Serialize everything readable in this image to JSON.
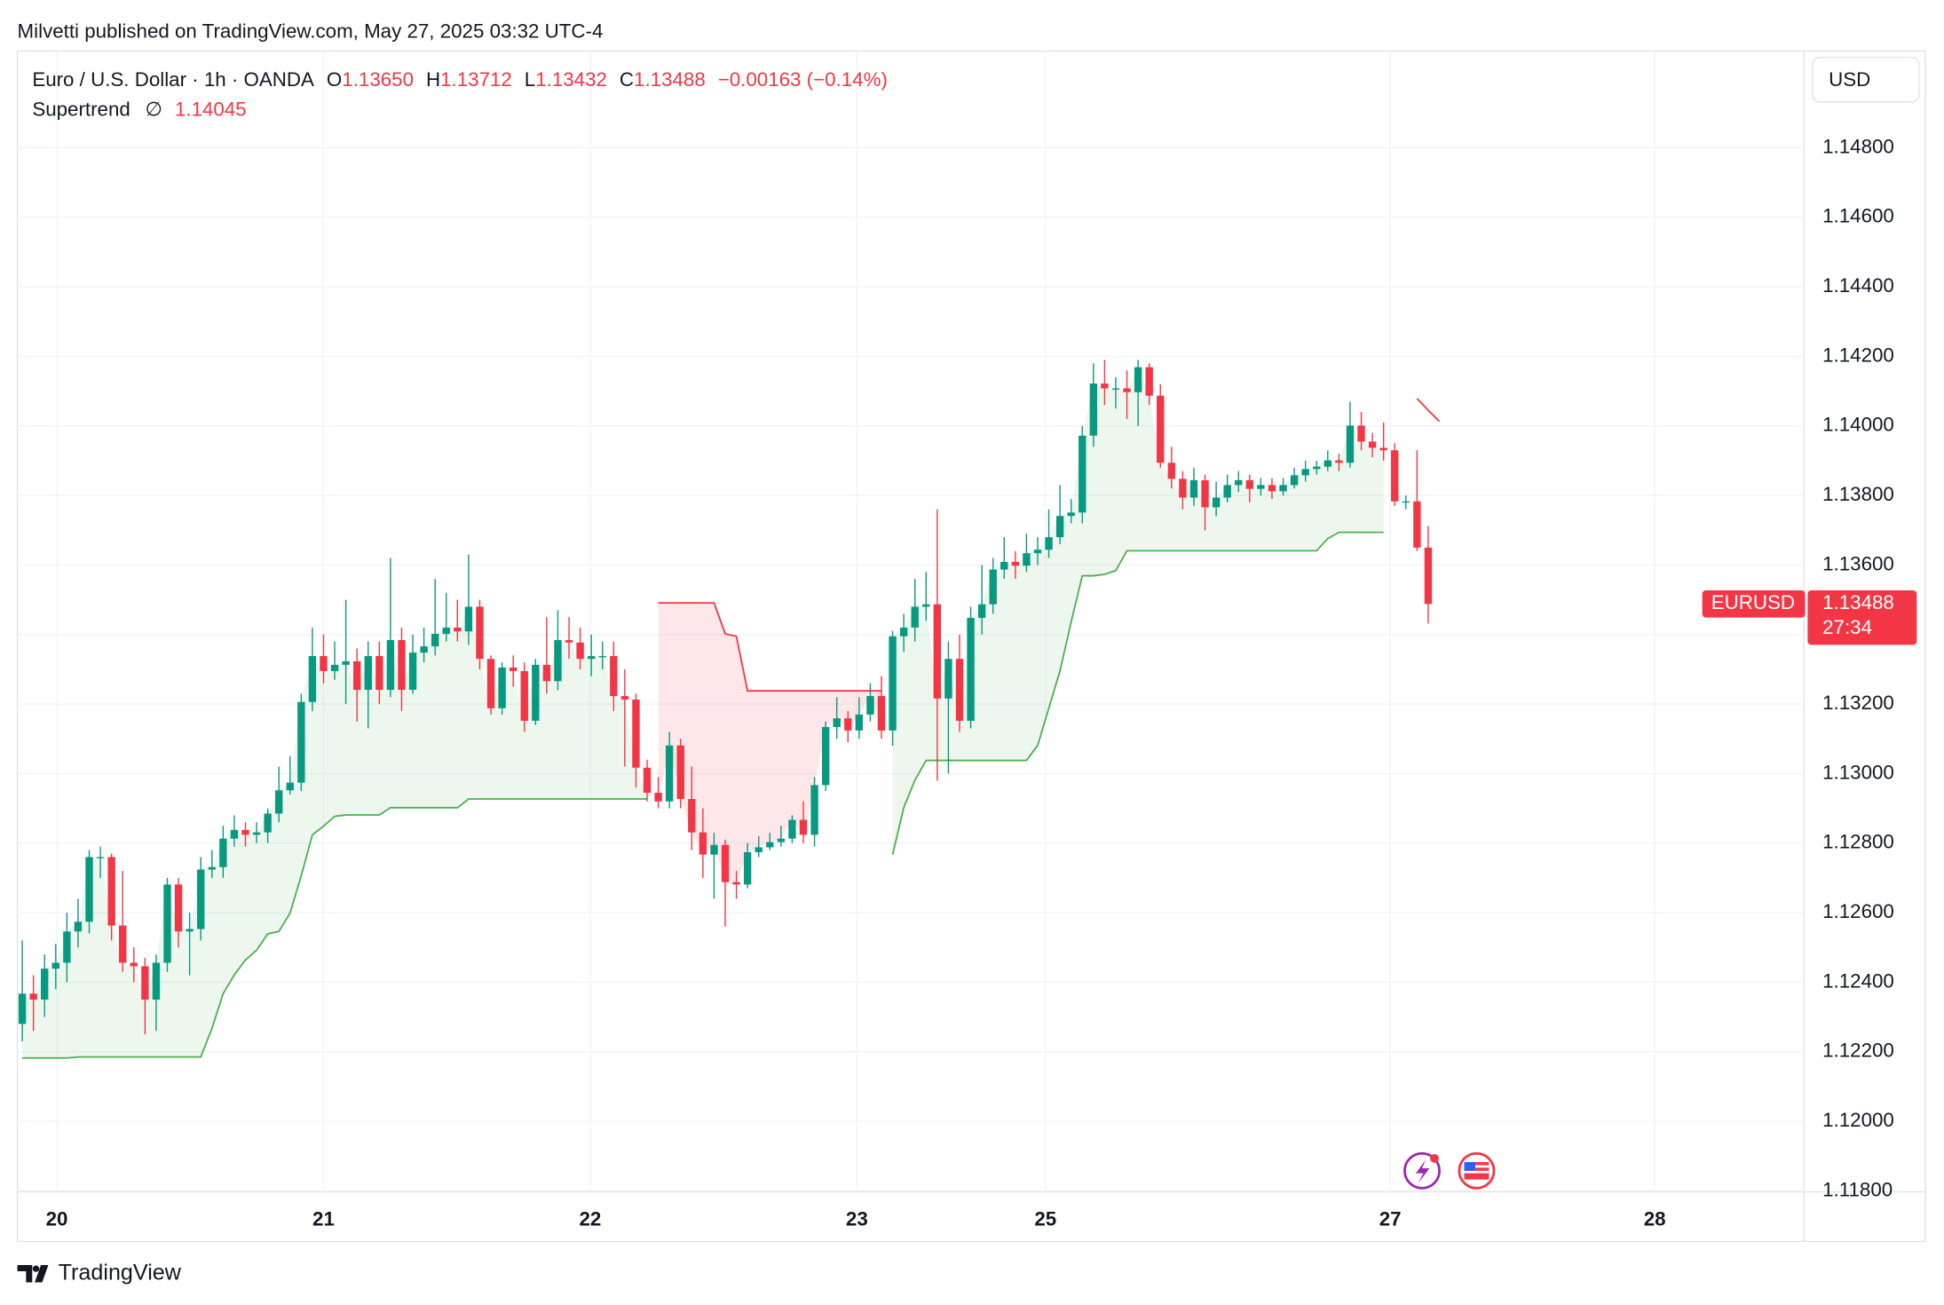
{
  "header": {
    "publisher": "Milvetti published on TradingView.com, May 27, 2025 03:32 UTC-4",
    "symbol": "Euro / U.S. Dollar · 1h · OANDA",
    "ohlc": [
      {
        "key": "O",
        "value": "1.13650"
      },
      {
        "key": "H",
        "value": "1.13712"
      },
      {
        "key": "L",
        "value": "1.13432"
      },
      {
        "key": "C",
        "value": "1.13488"
      }
    ],
    "change": "−0.00163 (−0.14%)",
    "indicator": "Supertrend",
    "indicator_symbol": "∅",
    "currency": "USD",
    "ticker": "EURUSD",
    "countdown": "27:34",
    "brand": "TradingView"
  },
  "chart_data": {
    "type": "candlestick",
    "up_color": "#089981",
    "down_color": "#f23645",
    "grid": true,
    "xlim": [
      -0.44,
      159.67
    ],
    "ylim": [
      1.11797,
      1.15078
    ],
    "xticks": [
      {
        "value": 3.1,
        "label": "20"
      },
      {
        "value": 27,
        "label": "21"
      },
      {
        "value": 50.9,
        "label": "22"
      },
      {
        "value": 74.8,
        "label": "23"
      },
      {
        "value": 91.7,
        "label": "25"
      },
      {
        "value": 122.6,
        "label": "27"
      },
      {
        "value": 146.3,
        "label": "28"
      }
    ],
    "yticks": [
      {
        "value": 1.118,
        "label": "1.11800"
      },
      {
        "value": 1.12,
        "label": "1.12000"
      },
      {
        "value": 1.122,
        "label": "1.12200"
      },
      {
        "value": 1.124,
        "label": "1.12400"
      },
      {
        "value": 1.126,
        "label": "1.12600"
      },
      {
        "value": 1.128,
        "label": "1.12800"
      },
      {
        "value": 1.13,
        "label": "1.13000"
      },
      {
        "value": 1.132,
        "label": "1.13200"
      },
      {
        "value": 1.134,
        "label": "1.13400"
      },
      {
        "value": 1.136,
        "label": "1.13600"
      },
      {
        "value": 1.138,
        "label": "1.13800"
      },
      {
        "value": 1.14,
        "label": "1.14000"
      },
      {
        "value": 1.142,
        "label": "1.14200"
      },
      {
        "value": 1.144,
        "label": "1.14400"
      },
      {
        "value": 1.146,
        "label": "1.14600"
      },
      {
        "value": 1.148,
        "label": "1.14800"
      }
    ],
    "open": [
      1.1228,
      1.12367,
      1.1235,
      1.12439,
      1.12456,
      1.12546,
      1.12574,
      1.1276,
      1.1276,
      1.12563,
      1.12456,
      1.12446,
      1.1235,
      1.12456,
      1.12681,
      1.12546,
      1.12553,
      1.12724,
      1.12731,
      1.12813,
      1.12838,
      1.12824,
      1.12831,
      1.12885,
      1.12952,
      1.12974,
      1.13206,
      1.13338,
      1.13295,
      1.13313,
      1.13323,
      1.13241,
      1.13338,
      1.13241,
      1.13384,
      1.13241,
      1.13348,
      1.13366,
      1.13402,
      1.1342,
      1.13409,
      1.1348,
      1.1333,
      1.13188,
      1.13305,
      1.13295,
      1.13152,
      1.13313,
      1.13266,
      1.13384,
      1.13377,
      1.1333,
      1.13338,
      1.13338,
      1.13223,
      1.13213,
      1.13017,
      1.12945,
      1.1292,
      1.13081,
      1.12927,
      1.12831,
      1.12767,
      1.12795,
      1.12688,
      1.12681,
      1.12774,
      1.12788,
      1.12803,
      1.12813,
      1.12867,
      1.12824,
      1.12967,
      1.13134,
      1.13159,
      1.13124,
      1.1317,
      1.13223,
      1.13124,
      1.13395,
      1.1342,
      1.1348,
      1.13487,
      1.13216,
      1.1333,
      1.13152,
      1.13448,
      1.13487,
      1.13587,
      1.13609,
      1.13598,
      1.13634,
      1.13644,
      1.1368,
      1.13741,
      1.13751,
      1.13972,
      1.14122,
      1.14108,
      1.14108,
      1.14097,
      1.14169,
      1.14087,
      1.13894,
      1.13848,
      1.13794,
      1.13844,
      1.13766,
      1.13794,
      1.1383,
      1.13844,
      1.13819,
      1.1383,
      1.13812,
      1.1383,
      1.13858,
      1.13876,
      1.13883,
      1.13901,
      1.13894,
      1.14001,
      1.13955,
      1.13937,
      1.1393,
      1.13783,
      1.13783,
      1.1365
    ],
    "high": [
      1.1252,
      1.1242,
      1.1248,
      1.1251,
      1.126,
      1.1264,
      1.1278,
      1.1279,
      1.1277,
      1.1272,
      1.125,
      1.1247,
      1.1248,
      1.127,
      1.127,
      1.126,
      1.1276,
      1.1278,
      1.1285,
      1.1288,
      1.1286,
      1.1286,
      1.129,
      1.1302,
      1.1305,
      1.1323,
      1.1342,
      1.134,
      1.1338,
      1.135,
      1.1336,
      1.1338,
      1.1338,
      1.1362,
      1.1342,
      1.134,
      1.1342,
      1.1356,
      1.1352,
      1.135,
      1.1363,
      1.135,
      1.1334,
      1.1332,
      1.1334,
      1.1332,
      1.1333,
      1.1345,
      1.1347,
      1.1345,
      1.1342,
      1.134,
      1.1338,
      1.1338,
      1.133,
      1.1323,
      1.1304,
      1.1299,
      1.1312,
      1.131,
      1.1302,
      1.129,
      1.1283,
      1.1281,
      1.1272,
      1.128,
      1.1282,
      1.1283,
      1.1285,
      1.1288,
      1.1292,
      1.1299,
      1.1315,
      1.1322,
      1.1318,
      1.1322,
      1.1326,
      1.1328,
      1.1341,
      1.1346,
      1.1356,
      1.1358,
      1.1376,
      1.1338,
      1.134,
      1.1348,
      1.136,
      1.1362,
      1.1368,
      1.1364,
      1.1369,
      1.1368,
      1.1376,
      1.1383,
      1.1379,
      1.14,
      1.1418,
      1.1419,
      1.1414,
      1.1416,
      1.1419,
      1.1418,
      1.1412,
      1.1394,
      1.1387,
      1.1388,
      1.1386,
      1.1384,
      1.1386,
      1.1387,
      1.1386,
      1.1385,
      1.1385,
      1.1385,
      1.1388,
      1.139,
      1.139,
      1.1393,
      1.1392,
      1.1407,
      1.1404,
      1.1398,
      1.1401,
      1.1395,
      1.138,
      1.1393,
      1.13712
    ],
    "low": [
      1.1223,
      1.1226,
      1.123,
      1.1238,
      1.124,
      1.125,
      1.1254,
      1.127,
      1.1252,
      1.1243,
      1.124,
      1.1225,
      1.1226,
      1.1243,
      1.125,
      1.1242,
      1.1252,
      1.127,
      1.127,
      1.1279,
      1.1279,
      1.128,
      1.128,
      1.1286,
      1.1294,
      1.1295,
      1.1318,
      1.1326,
      1.1327,
      1.132,
      1.1315,
      1.1313,
      1.132,
      1.1322,
      1.1318,
      1.1323,
      1.1332,
      1.1334,
      1.1338,
      1.1338,
      1.1337,
      1.133,
      1.1317,
      1.1317,
      1.1325,
      1.1312,
      1.1314,
      1.1323,
      1.1324,
      1.1333,
      1.133,
      1.1328,
      1.133,
      1.1318,
      1.1302,
      1.1296,
      1.1292,
      1.129,
      1.129,
      1.129,
      1.1278,
      1.127,
      1.1264,
      1.1256,
      1.1264,
      1.1267,
      1.1276,
      1.1278,
      1.1279,
      1.128,
      1.128,
      1.1279,
      1.1295,
      1.131,
      1.1309,
      1.131,
      1.1315,
      1.131,
      1.1308,
      1.1335,
      1.1338,
      1.1344,
      1.1298,
      1.13,
      1.1312,
      1.1313,
      1.134,
      1.1346,
      1.1356,
      1.1356,
      1.1358,
      1.136,
      1.1362,
      1.1366,
      1.1372,
      1.1372,
      1.1394,
      1.1406,
      1.1405,
      1.1402,
      1.14,
      1.1406,
      1.1388,
      1.1382,
      1.1376,
      1.1377,
      1.137,
      1.1374,
      1.1378,
      1.1381,
      1.1378,
      1.138,
      1.1379,
      1.138,
      1.1382,
      1.1384,
      1.1386,
      1.1387,
      1.1387,
      1.1388,
      1.1393,
      1.1391,
      1.139,
      1.1377,
      1.1376,
      1.1364,
      1.13432
    ],
    "close": [
      1.12367,
      1.1235,
      1.12439,
      1.12456,
      1.12546,
      1.12574,
      1.1276,
      1.1276,
      1.12563,
      1.12456,
      1.12446,
      1.1235,
      1.12456,
      1.12681,
      1.12546,
      1.12553,
      1.12724,
      1.12731,
      1.12813,
      1.12838,
      1.12824,
      1.12831,
      1.12885,
      1.12952,
      1.12974,
      1.13206,
      1.13338,
      1.13295,
      1.13313,
      1.13323,
      1.13241,
      1.13338,
      1.13241,
      1.13384,
      1.13241,
      1.13348,
      1.13366,
      1.13402,
      1.1342,
      1.13409,
      1.1348,
      1.1333,
      1.13188,
      1.13305,
      1.13295,
      1.13152,
      1.13313,
      1.13266,
      1.13384,
      1.13377,
      1.1333,
      1.13338,
      1.13338,
      1.13223,
      1.13213,
      1.13017,
      1.12945,
      1.1292,
      1.13081,
      1.12927,
      1.12831,
      1.12767,
      1.12795,
      1.12688,
      1.12681,
      1.12774,
      1.12788,
      1.12803,
      1.12813,
      1.12867,
      1.12824,
      1.12967,
      1.13134,
      1.13159,
      1.13124,
      1.1317,
      1.13223,
      1.13124,
      1.13395,
      1.1342,
      1.1348,
      1.13487,
      1.13216,
      1.1333,
      1.13152,
      1.13448,
      1.13487,
      1.13587,
      1.13609,
      1.13598,
      1.13634,
      1.13644,
      1.1368,
      1.13741,
      1.13751,
      1.13972,
      1.14122,
      1.14108,
      1.14108,
      1.14097,
      1.14169,
      1.14087,
      1.13894,
      1.13848,
      1.13794,
      1.13844,
      1.13766,
      1.13794,
      1.1383,
      1.13844,
      1.13819,
      1.1383,
      1.13812,
      1.1383,
      1.13858,
      1.13876,
      1.13883,
      1.13901,
      1.13894,
      1.14001,
      1.13955,
      1.13937,
      1.1393,
      1.13783,
      1.13783,
      1.1365,
      1.13488
    ],
    "supertrend_up": {
      "color": "#4caf50",
      "values": [
        1.12182,
        1.12182,
        1.12182,
        1.12182,
        1.12182,
        1.12185,
        1.12185,
        1.12185,
        1.12185,
        1.12185,
        1.12185,
        1.12185,
        1.12185,
        1.12185,
        1.12185,
        1.12185,
        1.12185,
        1.12267,
        1.12367,
        1.12421,
        1.12464,
        1.12492,
        1.12539,
        1.12546,
        1.12599,
        1.12706,
        1.12824,
        1.12849,
        1.12877,
        1.12881,
        1.12881,
        1.12881,
        1.12881,
        1.12902,
        1.12902,
        1.12902,
        1.12902,
        1.12902,
        1.12902,
        1.12902,
        1.12927,
        1.12927,
        1.12927,
        1.12927,
        1.12927,
        1.12927,
        1.12927,
        1.12927,
        1.12927,
        1.12927,
        1.12927,
        1.12927,
        1.12927,
        1.12927,
        1.12927,
        1.12927,
        1.12927,
        null,
        null,
        null,
        null,
        null,
        null,
        null,
        null,
        null,
        null,
        null,
        null,
        null,
        null,
        null,
        null,
        null,
        null,
        null,
        null,
        null,
        1.12767,
        1.12902,
        1.12981,
        1.13038,
        1.13038,
        1.13038,
        1.13038,
        1.13038,
        1.13038,
        1.13038,
        1.13038,
        1.13038,
        1.13038,
        1.13081,
        1.13188,
        1.13295,
        1.13436,
        1.13569,
        1.13569,
        1.13573,
        1.13584,
        1.13641,
        1.13641,
        1.13641,
        1.13641,
        1.13641,
        1.13641,
        1.13641,
        1.13641,
        1.13641,
        1.13641,
        1.13641,
        1.13641,
        1.13641,
        1.13641,
        1.13641,
        1.13641,
        1.13641,
        1.13641,
        1.13676,
        1.13694,
        1.13694,
        1.13694,
        1.13694,
        1.13694,
        null,
        null,
        null
      ]
    },
    "supertrend_down": {
      "color": "#f23645",
      "values": [
        null,
        null,
        null,
        null,
        null,
        null,
        null,
        null,
        null,
        null,
        null,
        null,
        null,
        null,
        null,
        null,
        null,
        null,
        null,
        null,
        null,
        null,
        null,
        null,
        null,
        null,
        null,
        null,
        null,
        null,
        null,
        null,
        null,
        null,
        null,
        null,
        null,
        null,
        null,
        null,
        null,
        null,
        null,
        null,
        null,
        null,
        null,
        null,
        null,
        null,
        null,
        null,
        null,
        null,
        null,
        null,
        null,
        1.13491,
        1.13491,
        1.13491,
        1.13491,
        1.13491,
        1.13491,
        1.13402,
        1.13395,
        1.13238,
        1.13238,
        1.13238,
        1.13238,
        1.13238,
        1.13238,
        1.13238,
        1.13238,
        1.13238,
        1.13238,
        1.13238,
        1.13238,
        1.13238,
        null,
        null,
        null,
        null,
        null,
        null,
        null,
        null,
        null,
        null,
        null,
        null,
        null,
        null,
        null,
        null,
        null,
        null,
        null,
        null,
        null,
        null,
        null,
        null,
        null,
        null,
        null,
        null,
        null,
        null,
        null,
        null,
        null,
        null,
        null,
        null,
        null,
        null,
        null,
        null,
        null,
        null,
        null,
        null,
        null,
        null,
        null,
        1.14079,
        1.14045,
        1.14013
      ]
    }
  }
}
